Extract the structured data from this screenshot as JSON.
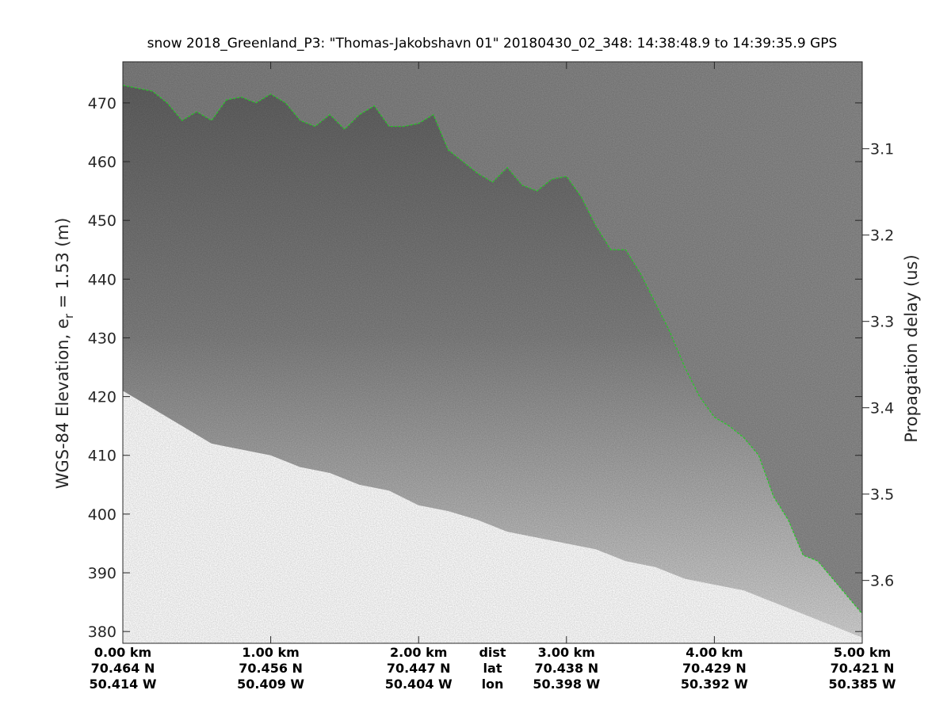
{
  "chart_data": {
    "type": "heatmap",
    "title": "snow 2018_Greenland_P3: \"Thomas-Jakobshavn 01\"  20180430_02_348: 14:38:48.9 to 14:39:35.9 GPS",
    "xlabel": "",
    "ylabel_left": "WGS-84 Elevation, e",
    "ylabel_left_sub": "r",
    "ylabel_left_suffix": " = 1.53 (m)",
    "ylabel_right": "Propagation delay (us)",
    "xlim": [
      0,
      5
    ],
    "ylim": [
      378,
      477
    ],
    "y_ticks": [
      "380",
      "390",
      "400",
      "410",
      "420",
      "430",
      "440",
      "450",
      "460",
      "470"
    ],
    "y_tick_values": [
      380,
      390,
      400,
      410,
      420,
      430,
      440,
      450,
      460,
      470
    ],
    "right_ticks": [
      "3.1",
      "3.2",
      "3.3",
      "3.4",
      "3.5",
      "3.6"
    ],
    "right_tick_values": [
      3.1,
      3.2,
      3.3,
      3.4,
      3.5,
      3.6
    ],
    "right_axis_elevation_at_3_1us": 462.2,
    "right_axis_elevation_per_0_1us": -14.7,
    "x_tick_values": [
      0,
      1,
      2,
      3,
      4,
      5
    ],
    "bottom_row_labels": {
      "dist": "dist",
      "lat": "lat",
      "lon": "lon"
    },
    "bottom_row_label_x": 2.5,
    "bottom_ticks": [
      {
        "dist": "0.00 km",
        "lat": "70.464 N",
        "lon": "50.414 W"
      },
      {
        "dist": "1.00 km",
        "lat": "70.456 N",
        "lon": "50.409 W"
      },
      {
        "dist": "2.00 km",
        "lat": "70.447 N",
        "lon": "50.404 W"
      },
      {
        "dist": "3.00 km",
        "lat": "70.438 N",
        "lon": "50.398 W"
      },
      {
        "dist": "4.00 km",
        "lat": "70.429 N",
        "lon": "50.392 W"
      },
      {
        "dist": "5.00 km",
        "lat": "70.421 N",
        "lon": "50.385 W"
      }
    ],
    "surface_line": {
      "color": "#22cc22",
      "x": [
        0,
        0.1,
        0.2,
        0.3,
        0.4,
        0.5,
        0.6,
        0.7,
        0.8,
        0.9,
        1.0,
        1.1,
        1.2,
        1.3,
        1.4,
        1.5,
        1.6,
        1.7,
        1.8,
        1.9,
        2.0,
        2.1,
        2.2,
        2.3,
        2.4,
        2.5,
        2.6,
        2.7,
        2.8,
        2.9,
        3.0,
        3.1,
        3.2,
        3.3,
        3.4,
        3.5,
        3.6,
        3.7,
        3.8,
        3.9,
        4.0,
        4.1,
        4.2,
        4.3,
        4.4,
        4.5,
        4.6,
        4.7,
        4.8,
        4.9,
        5.0
      ],
      "y": [
        473,
        472.5,
        472,
        470,
        467,
        468.5,
        467,
        470.5,
        471,
        470,
        471.5,
        470,
        467,
        466,
        468,
        465.5,
        468,
        469.5,
        466,
        466,
        466.5,
        468,
        462,
        460,
        458,
        456.5,
        459,
        456,
        455,
        457,
        457.5,
        454,
        449,
        445,
        445,
        441,
        436,
        431,
        425,
        420,
        416.5,
        415,
        413,
        410,
        403,
        399,
        393,
        392,
        389,
        386,
        383
      ]
    },
    "lower_boundary": {
      "x": [
        0,
        0.2,
        0.4,
        0.6,
        0.8,
        1.0,
        1.2,
        1.4,
        1.6,
        1.8,
        2.0,
        2.2,
        2.4,
        2.6,
        2.8,
        3.0,
        3.2,
        3.4,
        3.6,
        3.8,
        4.0,
        4.2,
        4.4,
        4.6,
        4.8,
        5.0
      ],
      "y": [
        421,
        418,
        415,
        412,
        411,
        410,
        408,
        407,
        405,
        404,
        401.5,
        400.5,
        399,
        397,
        396,
        395,
        394,
        392,
        391,
        389,
        388,
        387,
        385,
        383,
        381,
        379
      ]
    }
  }
}
